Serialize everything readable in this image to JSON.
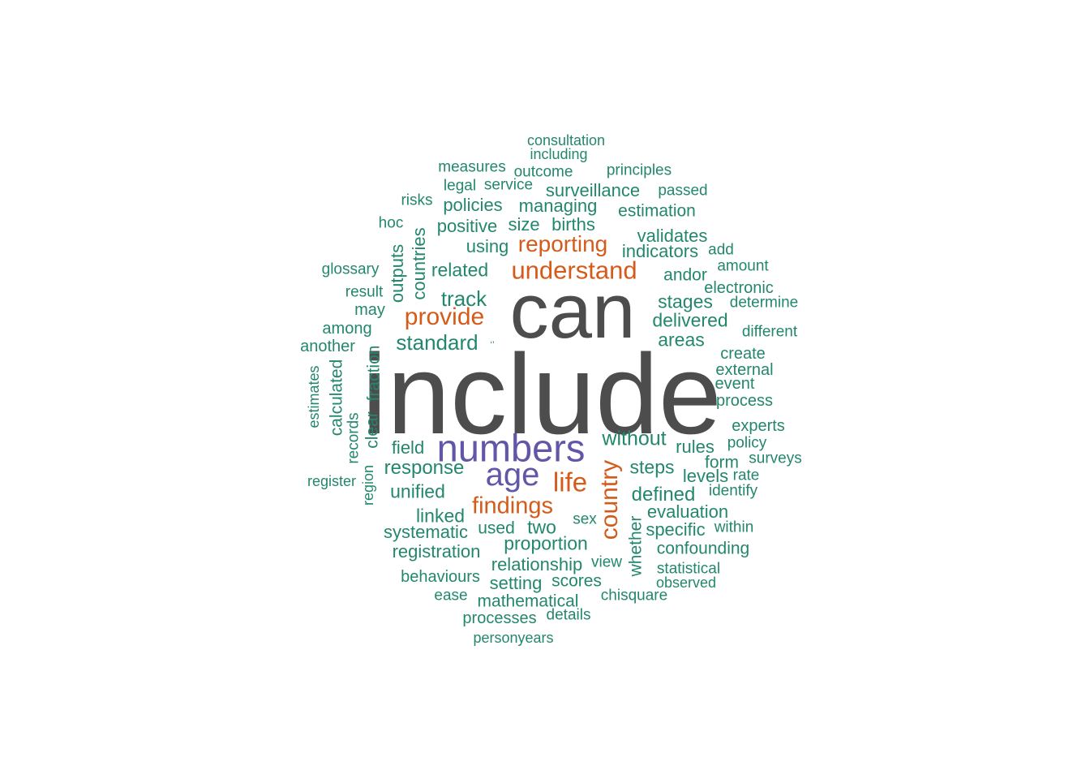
{
  "palette": {
    "dark": "#4d4d4d",
    "purple": "#6256a8",
    "orange": "#d45b1a",
    "green": "#23876d"
  },
  "words": [
    {
      "text": "include",
      "size": 140,
      "color": "dark"
    },
    {
      "text": "can",
      "size": 96,
      "color": "dark"
    },
    {
      "text": "numbers",
      "size": 47,
      "color": "purple"
    },
    {
      "text": "age",
      "size": 40,
      "color": "purple"
    },
    {
      "text": "understand",
      "size": 31,
      "color": "orange"
    },
    {
      "text": "provide",
      "size": 30,
      "color": "orange"
    },
    {
      "text": "country",
      "size": 30,
      "color": "orange"
    },
    {
      "text": "life",
      "size": 33,
      "color": "orange"
    },
    {
      "text": "findings",
      "size": 29,
      "color": "orange"
    },
    {
      "text": "reporting",
      "size": 28,
      "color": "orange"
    },
    {
      "text": "standard",
      "size": 26,
      "color": "green"
    },
    {
      "text": "track",
      "size": 26,
      "color": "green"
    },
    {
      "text": "without",
      "size": 25,
      "color": "green"
    },
    {
      "text": "response",
      "size": 24,
      "color": "green"
    },
    {
      "text": "defined",
      "size": 24,
      "color": "green"
    },
    {
      "text": "related",
      "size": 23,
      "color": "green"
    },
    {
      "text": "stages",
      "size": 23,
      "color": "green"
    },
    {
      "text": "delivered",
      "size": 23,
      "color": "green"
    },
    {
      "text": "areas",
      "size": 23,
      "color": "green"
    },
    {
      "text": "steps",
      "size": 23,
      "color": "green"
    },
    {
      "text": "unified",
      "size": 23,
      "color": "green"
    },
    {
      "text": "linked",
      "size": 23,
      "color": "green"
    },
    {
      "text": "two",
      "size": 23,
      "color": "green"
    },
    {
      "text": "proportion",
      "size": 23,
      "color": "green"
    },
    {
      "text": "field",
      "size": 22,
      "color": "green"
    },
    {
      "text": "rules",
      "size": 22,
      "color": "green"
    },
    {
      "text": "levels",
      "size": 22,
      "color": "green"
    },
    {
      "text": "evaluation",
      "size": 22,
      "color": "green"
    },
    {
      "text": "specific",
      "size": 22,
      "color": "green"
    },
    {
      "text": "systematic",
      "size": 22,
      "color": "green"
    },
    {
      "text": "registration",
      "size": 22,
      "color": "green"
    },
    {
      "text": "relationship",
      "size": 22,
      "color": "green"
    },
    {
      "text": "setting",
      "size": 22,
      "color": "green"
    },
    {
      "text": "scores",
      "size": 21,
      "color": "green"
    },
    {
      "text": "mathematical",
      "size": 21,
      "color": "green"
    },
    {
      "text": "confounding",
      "size": 21,
      "color": "green"
    },
    {
      "text": "form",
      "size": 21,
      "color": "green"
    },
    {
      "text": "used",
      "size": 21,
      "color": "green"
    },
    {
      "text": "andor",
      "size": 21,
      "color": "green"
    },
    {
      "text": "indicators",
      "size": 22,
      "color": "green"
    },
    {
      "text": "validates",
      "size": 22,
      "color": "green"
    },
    {
      "text": "using",
      "size": 22,
      "color": "green"
    },
    {
      "text": "positive",
      "size": 22,
      "color": "green"
    },
    {
      "text": "size",
      "size": 22,
      "color": "green"
    },
    {
      "text": "births",
      "size": 22,
      "color": "green"
    },
    {
      "text": "policies",
      "size": 22,
      "color": "green"
    },
    {
      "text": "managing",
      "size": 22,
      "color": "green"
    },
    {
      "text": "surveillance",
      "size": 22,
      "color": "green"
    },
    {
      "text": "estimation",
      "size": 21,
      "color": "green"
    },
    {
      "text": "countries",
      "size": 22,
      "color": "green"
    },
    {
      "text": "outputs",
      "size": 22,
      "color": "green"
    },
    {
      "text": "fraction",
      "size": 21,
      "color": "green"
    },
    {
      "text": "clear",
      "size": 21,
      "color": "green"
    },
    {
      "text": "calculated",
      "size": 21,
      "color": "green"
    },
    {
      "text": "whether",
      "size": 21,
      "color": "green"
    },
    {
      "text": "process",
      "size": 20,
      "color": "green"
    },
    {
      "text": "experts",
      "size": 20,
      "color": "green"
    },
    {
      "text": "create",
      "size": 20,
      "color": "green"
    },
    {
      "text": "external",
      "size": 20,
      "color": "green"
    },
    {
      "text": "event",
      "size": 20,
      "color": "green"
    },
    {
      "text": "electronic",
      "size": 20,
      "color": "green"
    },
    {
      "text": "among",
      "size": 20,
      "color": "green"
    },
    {
      "text": "another",
      "size": 20,
      "color": "green"
    },
    {
      "text": "may",
      "size": 20,
      "color": "green"
    },
    {
      "text": "result",
      "size": 19,
      "color": "green"
    },
    {
      "text": "glossary",
      "size": 19,
      "color": "green"
    },
    {
      "text": "behaviours",
      "size": 20,
      "color": "green"
    },
    {
      "text": "processes",
      "size": 20,
      "color": "green"
    },
    {
      "text": "principles",
      "size": 19,
      "color": "green"
    },
    {
      "text": "measures",
      "size": 19,
      "color": "green"
    },
    {
      "text": "outcome",
      "size": 19,
      "color": "green"
    },
    {
      "text": "legal",
      "size": 19,
      "color": "green"
    },
    {
      "text": "service",
      "size": 19,
      "color": "green"
    },
    {
      "text": "passed",
      "size": 19,
      "color": "green"
    },
    {
      "text": "risks",
      "size": 19,
      "color": "green"
    },
    {
      "text": "hoc",
      "size": 19,
      "color": "green"
    },
    {
      "text": "add",
      "size": 19,
      "color": "green"
    },
    {
      "text": "amount",
      "size": 19,
      "color": "green"
    },
    {
      "text": "determine",
      "size": 19,
      "color": "green"
    },
    {
      "text": "different",
      "size": 19,
      "color": "green"
    },
    {
      "text": "policy",
      "size": 19,
      "color": "green"
    },
    {
      "text": "surveys",
      "size": 19,
      "color": "green"
    },
    {
      "text": "rate",
      "size": 19,
      "color": "green"
    },
    {
      "text": "identify",
      "size": 19,
      "color": "green"
    },
    {
      "text": "within",
      "size": 19,
      "color": "green"
    },
    {
      "text": "statistical",
      "size": 19,
      "color": "green"
    },
    {
      "text": "observed",
      "size": 18,
      "color": "green"
    },
    {
      "text": "chisquare",
      "size": 19,
      "color": "green"
    },
    {
      "text": "view",
      "size": 19,
      "color": "green"
    },
    {
      "text": "sex",
      "size": 19,
      "color": "green"
    },
    {
      "text": "details",
      "size": 19,
      "color": "green"
    },
    {
      "text": "ease",
      "size": 19,
      "color": "green"
    },
    {
      "text": "personyears",
      "size": 18,
      "color": "green"
    },
    {
      "text": "consultation",
      "size": 18,
      "color": "green"
    },
    {
      "text": "including",
      "size": 18,
      "color": "green"
    },
    {
      "text": "register",
      "size": 18,
      "color": "green"
    },
    {
      "text": "estimates",
      "size": 18,
      "color": "green"
    },
    {
      "text": "records",
      "size": 19,
      "color": "green"
    },
    {
      "text": "region",
      "size": 18,
      "color": "green"
    },
    {
      "text": "‘’",
      "size": 12,
      "color": "green"
    }
  ]
}
